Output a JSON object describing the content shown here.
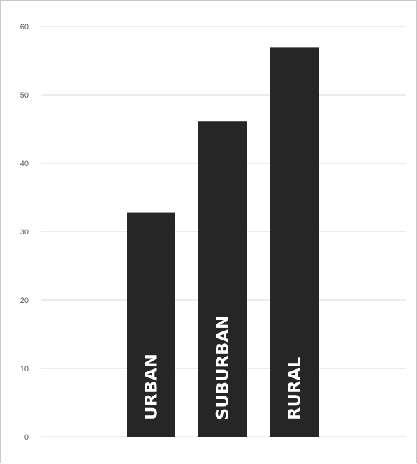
{
  "chart_data": {
    "type": "bar",
    "categories": [
      "URBAN",
      "SUBURBAN",
      "RURAL"
    ],
    "values": [
      32.8,
      46.1,
      56.9
    ],
    "ylim": [
      0,
      60
    ],
    "yticks": [
      "0",
      "10",
      "20",
      "30",
      "40",
      "50",
      "60"
    ],
    "grid": true,
    "bar_color": "#262626",
    "grid_color": "#d9d9d9",
    "label_color": "#ffffff",
    "title": "",
    "xlabel": "",
    "ylabel": ""
  }
}
